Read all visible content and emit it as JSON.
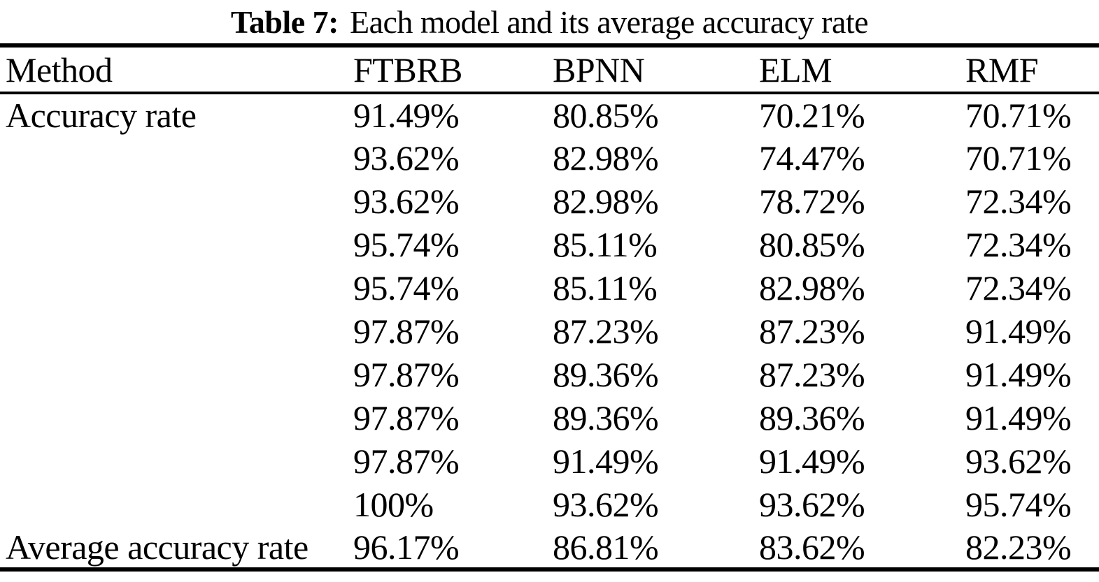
{
  "caption": {
    "label": "Table 7:",
    "text": "Each model and its average accuracy rate"
  },
  "table": {
    "columns": [
      "Method",
      "FTBRB",
      "BPNN",
      "ELM",
      "RMF"
    ],
    "rows": [
      [
        "Accuracy rate",
        "91.49%",
        "80.85%",
        "70.21%",
        "70.71%"
      ],
      [
        "",
        "93.62%",
        "82.98%",
        "74.47%",
        "70.71%"
      ],
      [
        "",
        "93.62%",
        "82.98%",
        "78.72%",
        "72.34%"
      ],
      [
        "",
        "95.74%",
        "85.11%",
        "80.85%",
        "72.34%"
      ],
      [
        "",
        "95.74%",
        "85.11%",
        "82.98%",
        "72.34%"
      ],
      [
        "",
        "97.87%",
        "87.23%",
        "87.23%",
        "91.49%"
      ],
      [
        "",
        "97.87%",
        "89.36%",
        "87.23%",
        "91.49%"
      ],
      [
        "",
        "97.87%",
        "89.36%",
        "89.36%",
        "91.49%"
      ],
      [
        "",
        "97.87%",
        "91.49%",
        "91.49%",
        "93.62%"
      ],
      [
        "",
        "100%",
        "93.62%",
        "93.62%",
        "95.74%"
      ],
      [
        "Average accuracy rate",
        "96.17%",
        "86.81%",
        "83.62%",
        "82.23%"
      ]
    ]
  },
  "colors": {
    "text": "#000000",
    "background": "#ffffff",
    "rule": "#000000"
  },
  "chart_data": {
    "type": "table",
    "title": "Table 7: Each model and its average accuracy rate",
    "columns": [
      "Method",
      "FTBRB",
      "BPNN",
      "ELM",
      "RMF"
    ],
    "accuracy_rates": {
      "FTBRB": [
        91.49,
        93.62,
        93.62,
        95.74,
        95.74,
        97.87,
        97.87,
        97.87,
        97.87,
        100
      ],
      "BPNN": [
        80.85,
        82.98,
        82.98,
        85.11,
        85.11,
        87.23,
        89.36,
        89.36,
        91.49,
        93.62
      ],
      "ELM": [
        70.21,
        74.47,
        78.72,
        80.85,
        82.98,
        87.23,
        87.23,
        89.36,
        91.49,
        93.62
      ],
      "RMF": [
        70.71,
        70.71,
        72.34,
        72.34,
        72.34,
        91.49,
        91.49,
        91.49,
        93.62,
        95.74
      ]
    },
    "average_accuracy_rate": {
      "FTBRB": 96.17,
      "BPNN": 86.81,
      "ELM": 83.62,
      "RMF": 82.23
    }
  }
}
